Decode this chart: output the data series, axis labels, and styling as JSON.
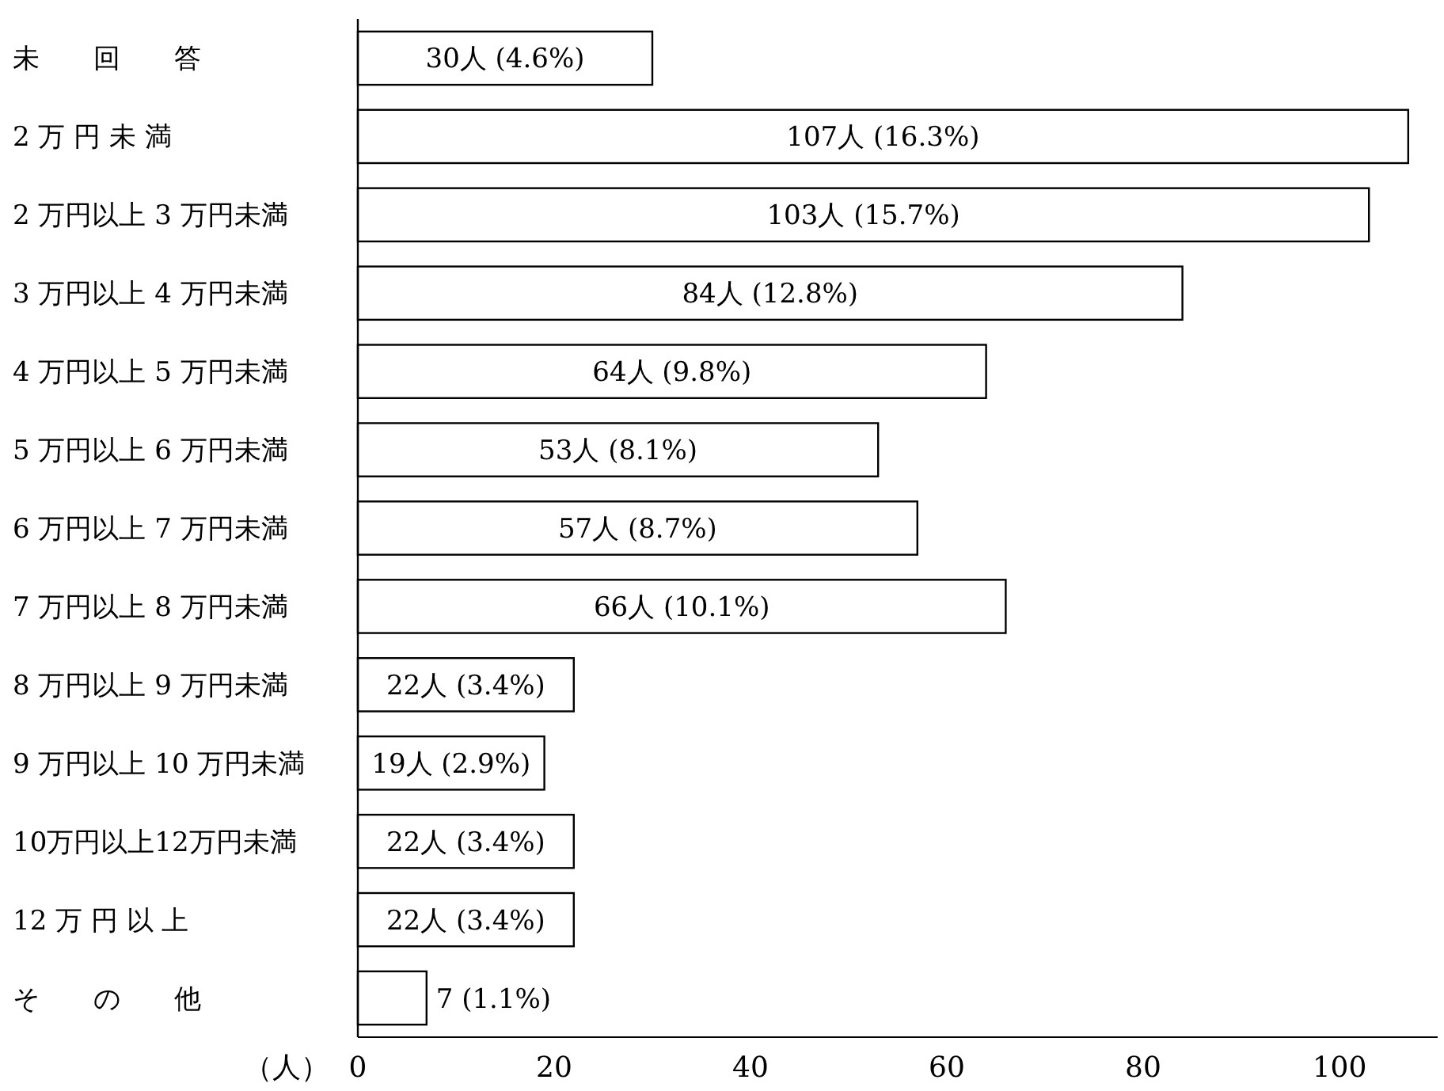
{
  "chart_data": {
    "type": "bar",
    "orientation": "horizontal",
    "xlabel": "（人）",
    "categories": [
      "未　　回　　答",
      "2 万 円 未 満",
      "2 万円以上 3 万円未満",
      "3 万円以上 4 万円未満",
      "4 万円以上 5 万円未満",
      "5 万円以上 6 万円未満",
      "6 万円以上 7 万円未満",
      "7 万円以上 8 万円未満",
      "8 万円以上 9 万円未満",
      "9 万円以上 10 万円未満",
      "10万円以上12万円未満",
      "12 万 円 以 上",
      "そ　　の　　他"
    ],
    "values": [
      30,
      107,
      103,
      84,
      64,
      53,
      57,
      66,
      22,
      19,
      22,
      22,
      7
    ],
    "value_labels": [
      "30人 (4.6%)",
      "107人 (16.3%)",
      "103人 (15.7%)",
      "84人 (12.8%)",
      "64人 (9.8%)",
      "53人 (8.1%)",
      "57人 (8.7%)",
      "66人 (10.1%)",
      "22人 (3.4%)",
      "19人 (2.9%)",
      "22人 (3.4%)",
      "22人 (3.4%)",
      "7 (1.1%)"
    ],
    "color": "#ffffff",
    "xlim": [
      0,
      110
    ],
    "xticks": [
      0,
      20,
      40,
      60,
      80,
      100
    ],
    "grid": false
  }
}
